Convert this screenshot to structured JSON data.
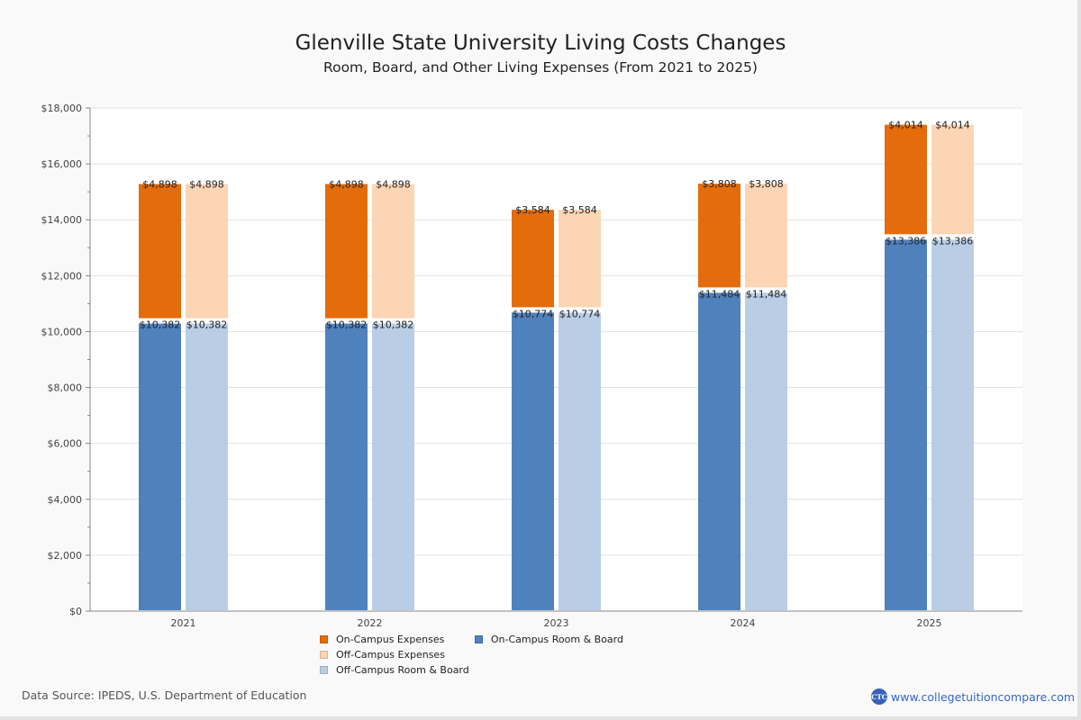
{
  "header": {
    "title": "Glenville State University Living Costs Changes",
    "subtitle": "Room, Board, and Other Living Expenses (From 2021 to 2025)"
  },
  "chart_data": {
    "type": "bar",
    "stacked": true,
    "title": "Glenville State University Living Costs Changes",
    "subtitle": "Room, Board, and Other Living Expenses (From 2021 to 2025)",
    "xlabel": "",
    "ylabel": "",
    "categories": [
      "2021",
      "2022",
      "2023",
      "2024",
      "2025"
    ],
    "ylim": [
      0,
      18000
    ],
    "yticks": [
      0,
      2000,
      4000,
      6000,
      8000,
      10000,
      12000,
      14000,
      16000,
      18000
    ],
    "ytick_labels": [
      "$0",
      "$2,000",
      "$4,000",
      "$6,000",
      "$8,000",
      "$10,000",
      "$12,000",
      "$14,000",
      "$16,000",
      "$18,000"
    ],
    "grid": true,
    "legend_position": "bottom",
    "stacks": [
      {
        "name": "On-Campus",
        "series": [
          {
            "name": "On-Campus Room & Board",
            "color": "#4f81bd",
            "values": [
              10382,
              10382,
              10774,
              11484,
              13386
            ],
            "labels": [
              "$10,382",
              "$10,382",
              "$10,774",
              "$11,484",
              "$13,386"
            ]
          },
          {
            "name": "On-Campus Expenses",
            "color": "#e46c0a",
            "values": [
              4898,
              4898,
              3584,
              3808,
              4014
            ],
            "labels": [
              "$4,898",
              "$4,898",
              "$3,584",
              "$3,808",
              "$4,014"
            ]
          }
        ]
      },
      {
        "name": "Off-Campus",
        "series": [
          {
            "name": "Off-Campus Room & Board",
            "color": "#b9cde5",
            "values": [
              10382,
              10382,
              10774,
              11484,
              13386
            ],
            "labels": [
              "$10,382",
              "$10,382",
              "$10,774",
              "$11,484",
              "$13,386"
            ]
          },
          {
            "name": "Off-Campus Expenses",
            "color": "#fcd5b5",
            "values": [
              4898,
              4898,
              3584,
              3808,
              4014
            ],
            "labels": [
              "$4,898",
              "$4,898",
              "$3,584",
              "$3,808",
              "$4,014"
            ]
          }
        ]
      }
    ]
  },
  "legend": {
    "items": [
      {
        "label": "On-Campus Expenses",
        "color": "#e46c0a"
      },
      {
        "label": "On-Campus Room & Board",
        "color": "#4f81bd"
      },
      {
        "label": "Off-Campus Expenses",
        "color": "#fcd5b5"
      },
      {
        "label": "Off-Campus Room & Board",
        "color": "#b9cde5"
      }
    ]
  },
  "footer": {
    "source": "Data Source: IPEDS, U.S. Department of Education",
    "brand_logo_text": "CTC",
    "brand_url": "www.collegetuitioncompare.com"
  }
}
